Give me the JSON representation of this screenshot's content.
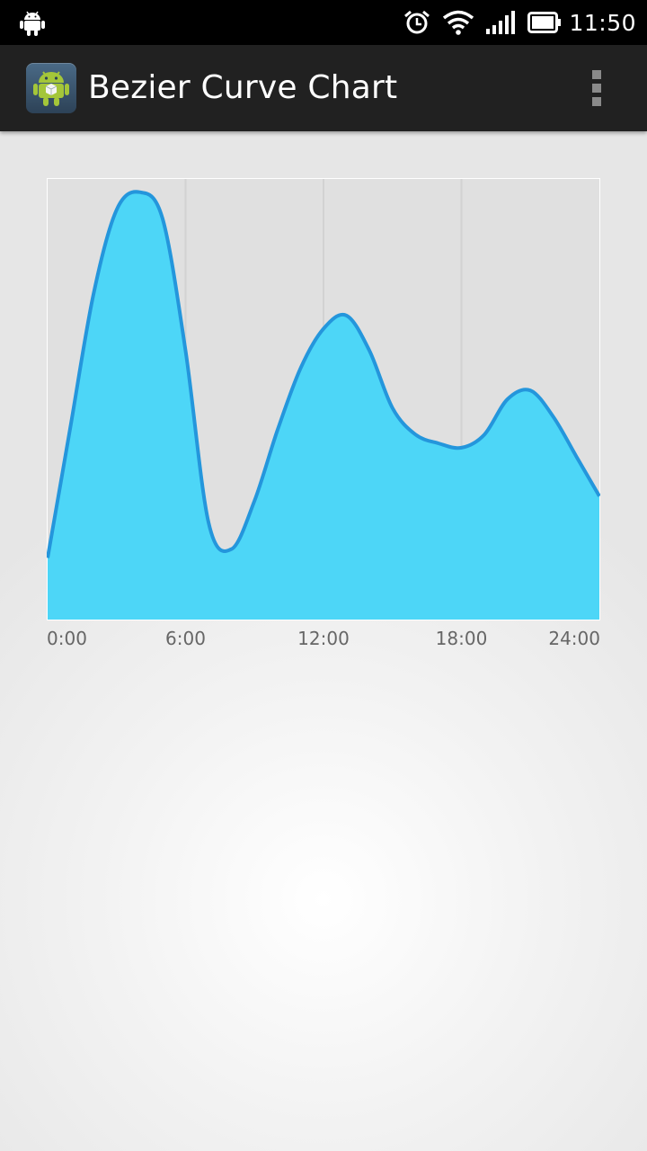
{
  "status_bar": {
    "time": "11:50",
    "icons": [
      "android-notification-icon",
      "alarm-icon",
      "wifi-icon",
      "signal-icon",
      "battery-icon"
    ]
  },
  "action_bar": {
    "title": "Bezier Curve Chart",
    "app_icon": "android-app-icon",
    "menu_icon": "overflow-menu-icon"
  },
  "colors": {
    "fill": "#4dd6f7",
    "stroke": "#2496dc",
    "plot_bg": "#e0e0e0",
    "action_bar_bg": "#212121"
  },
  "chart_data": {
    "type": "area",
    "x": [
      0,
      1,
      2,
      3,
      4,
      5,
      6,
      7,
      8,
      9,
      10,
      11,
      12,
      13,
      14,
      15,
      16,
      17,
      18,
      19,
      20,
      21,
      22,
      23,
      24
    ],
    "values": [
      14,
      44,
      74,
      93,
      97,
      91,
      61,
      22,
      16,
      27,
      43,
      57,
      66,
      69,
      61,
      48,
      42,
      40,
      39,
      42,
      50,
      52,
      46,
      37,
      28
    ],
    "xlim": [
      0,
      24
    ],
    "ylim": [
      0,
      100
    ],
    "x_tick_labels": [
      "0:00",
      "6:00",
      "12:00",
      "18:00",
      "24:00"
    ],
    "x_tick_values": [
      0,
      6,
      12,
      18,
      24
    ],
    "grid": "vertical",
    "title": "",
    "xlabel": "",
    "ylabel": ""
  }
}
